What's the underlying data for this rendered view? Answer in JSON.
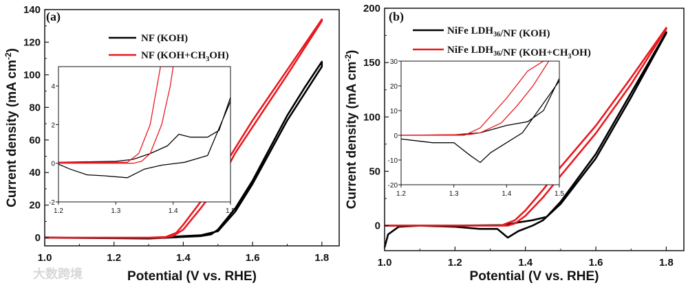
{
  "watermark": "大数跨境",
  "colors": {
    "black": "#000000",
    "red": "#e8191f"
  },
  "chart_data": [
    {
      "type": "line",
      "panel_label": "(a)",
      "xlabel": "Potential (V vs. RHE)",
      "ylabel": "Current density (mA cm-2)",
      "xlim": [
        1.0,
        1.85
      ],
      "ylim": [
        -5,
        140
      ],
      "xticks": [
        1.0,
        1.2,
        1.4,
        1.6,
        1.8
      ],
      "xtick_labels": [
        "1.0",
        "1.2",
        "1.4",
        "1.6",
        "1.8"
      ],
      "yticks": [
        0,
        20,
        40,
        60,
        80,
        100,
        120,
        140
      ],
      "ytick_labels": [
        "0",
        "20",
        "40",
        "60",
        "80",
        "100",
        "120",
        "140"
      ],
      "legend": "top-center",
      "series": [
        {
          "name": "NF (KOH)",
          "color": "#000000",
          "x": [
            1.0,
            1.2,
            1.3,
            1.4,
            1.45,
            1.48,
            1.5,
            1.55,
            1.6,
            1.65,
            1.7,
            1.75,
            1.8,
            1.8,
            1.7,
            1.6,
            1.55,
            1.5,
            1.45,
            1.4,
            1.3,
            1.0
          ],
          "y": [
            0,
            -0.3,
            -0.5,
            0.5,
            1,
            2,
            5,
            18,
            35,
            55,
            75,
            92,
            108,
            105,
            72,
            33,
            16,
            4,
            1.5,
            1,
            -0.3,
            0
          ]
        },
        {
          "name": "NF (KOH+CH3OH)",
          "color": "#e8191f",
          "x": [
            1.0,
            1.3,
            1.35,
            1.38,
            1.4,
            1.45,
            1.5,
            1.55,
            1.6,
            1.7,
            1.8,
            1.8,
            1.7,
            1.6,
            1.55,
            1.5,
            1.45,
            1.4,
            1.37,
            1.34,
            1.0
          ],
          "y": [
            0,
            0,
            0.5,
            3,
            8,
            22,
            38,
            55,
            72,
            103,
            134,
            133,
            100,
            68,
            52,
            32,
            18,
            5,
            1,
            0,
            0
          ]
        }
      ],
      "inset": {
        "xlim": [
          1.2,
          1.5
        ],
        "ylim": [
          -2,
          5
        ],
        "xticks": [
          1.2,
          1.3,
          1.4,
          1.5
        ],
        "xtick_labels": [
          "1.2",
          "1.3",
          "1.4",
          "1.5"
        ],
        "yticks": [
          -2,
          0,
          2,
          4
        ],
        "ytick_labels": [
          "-2",
          "0",
          "2",
          "4"
        ],
        "series": [
          {
            "name": "NF (KOH)",
            "color": "#000000",
            "x": [
              1.2,
              1.3,
              1.33,
              1.36,
              1.39,
              1.41,
              1.43,
              1.46,
              1.48,
              1.5,
              1.5,
              1.48,
              1.46,
              1.42,
              1.38,
              1.35,
              1.32,
              1.28,
              1.25,
              1.22,
              1.2
            ],
            "y": [
              0.05,
              0.1,
              0.2,
              0.5,
              0.9,
              1.5,
              1.35,
              1.35,
              1.7,
              3.4,
              3.2,
              1.8,
              0.4,
              0.05,
              -0.1,
              -0.3,
              -0.75,
              -0.65,
              -0.6,
              -0.3,
              -0.05
            ]
          },
          {
            "name": "NF (KOH+CH3OH)",
            "color": "#e8191f",
            "x": [
              1.2,
              1.32,
              1.34,
              1.36,
              1.372,
              1.378,
              1.4,
              1.395,
              1.38,
              1.36,
              1.345,
              1.33,
              1.2
            ],
            "y": [
              0.05,
              0.05,
              0.5,
              2,
              4,
              5,
              5,
              4,
              2,
              0.5,
              0.1,
              0,
              0
            ]
          }
        ]
      }
    },
    {
      "type": "line",
      "panel_label": "(b)",
      "xlabel": "Potential (V vs. RHE)",
      "ylabel": "Current density (mA cm-2)",
      "xlim": [
        1.0,
        1.85
      ],
      "ylim": [
        -23,
        200
      ],
      "xticks": [
        1.0,
        1.2,
        1.4,
        1.6,
        1.8
      ],
      "xtick_labels": [
        "1.0",
        "1.2",
        "1.4",
        "1.6",
        "1.8"
      ],
      "yticks": [
        0,
        50,
        100,
        150,
        200
      ],
      "ytick_labels": [
        "0",
        "50",
        "100",
        "150",
        "200"
      ],
      "legend": "top-center",
      "series": [
        {
          "name": "NiFe LDH36/NF (KOH)",
          "color": "#000000",
          "x": [
            1.0,
            1.01,
            1.04,
            1.1,
            1.2,
            1.27,
            1.32,
            1.35,
            1.38,
            1.42,
            1.45,
            1.5,
            1.6,
            1.7,
            1.8,
            1.8,
            1.7,
            1.6,
            1.5,
            1.46,
            1.42,
            1.38,
            1.34,
            1.2,
            1.0
          ],
          "y": [
            -20,
            -8,
            -1,
            0,
            -1,
            -3,
            -3,
            -11,
            -5,
            0,
            5,
            20,
            62,
            118,
            177,
            178,
            122,
            66,
            22,
            8,
            5,
            3,
            0.5,
            0,
            0
          ]
        },
        {
          "name": "NiFe LDH36/NF (KOH+CH3OH)",
          "color": "#e8191f",
          "x": [
            1.0,
            1.33,
            1.37,
            1.4,
            1.45,
            1.5,
            1.6,
            1.7,
            1.8,
            1.8,
            1.7,
            1.6,
            1.5,
            1.45,
            1.4,
            1.37,
            1.35,
            1.0
          ],
          "y": [
            0,
            0,
            5,
            14,
            33,
            54,
            92,
            136,
            182,
            181,
            130,
            85,
            46,
            26,
            9,
            2,
            0,
            0
          ]
        }
      ],
      "inset": {
        "xlim": [
          1.2,
          1.5
        ],
        "ylim": [
          -20,
          30
        ],
        "xticks": [
          1.2,
          1.3,
          1.4,
          1.5
        ],
        "xtick_labels": [
          "1.2",
          "1.3",
          "1.4",
          "1.5"
        ],
        "yticks": [
          -20,
          -10,
          0,
          10,
          20,
          30
        ],
        "ytick_labels": [
          "-20",
          "-10",
          "0",
          "10",
          "20",
          "30"
        ],
        "series": [
          {
            "name": "NiFe LDH36/NF (KOH)",
            "color": "#000000",
            "x": [
              1.2,
              1.3,
              1.35,
              1.4,
              1.44,
              1.47,
              1.5,
              1.5,
              1.46,
              1.43,
              1.4,
              1.37,
              1.35,
              1.33,
              1.3,
              1.26,
              1.22,
              1.2
            ],
            "y": [
              0,
              0.2,
              1,
              4,
              5.5,
              10,
              23,
              22,
              10,
              1,
              -3,
              -7,
              -11,
              -8,
              -3,
              -3,
              -2,
              -1.5
            ]
          },
          {
            "name": "NiFe LDH36/NF (KOH+CH3OH)",
            "color": "#e8191f",
            "x": [
              1.2,
              1.32,
              1.35,
              1.4,
              1.44,
              1.47,
              1.48,
              1.45,
              1.42,
              1.39,
              1.35,
              1.33,
              1.2
            ],
            "y": [
              0,
              0,
              3,
              15,
              26,
              30,
              30,
              20,
              12,
              5,
              1,
              0.3,
              0
            ]
          }
        ]
      }
    }
  ]
}
